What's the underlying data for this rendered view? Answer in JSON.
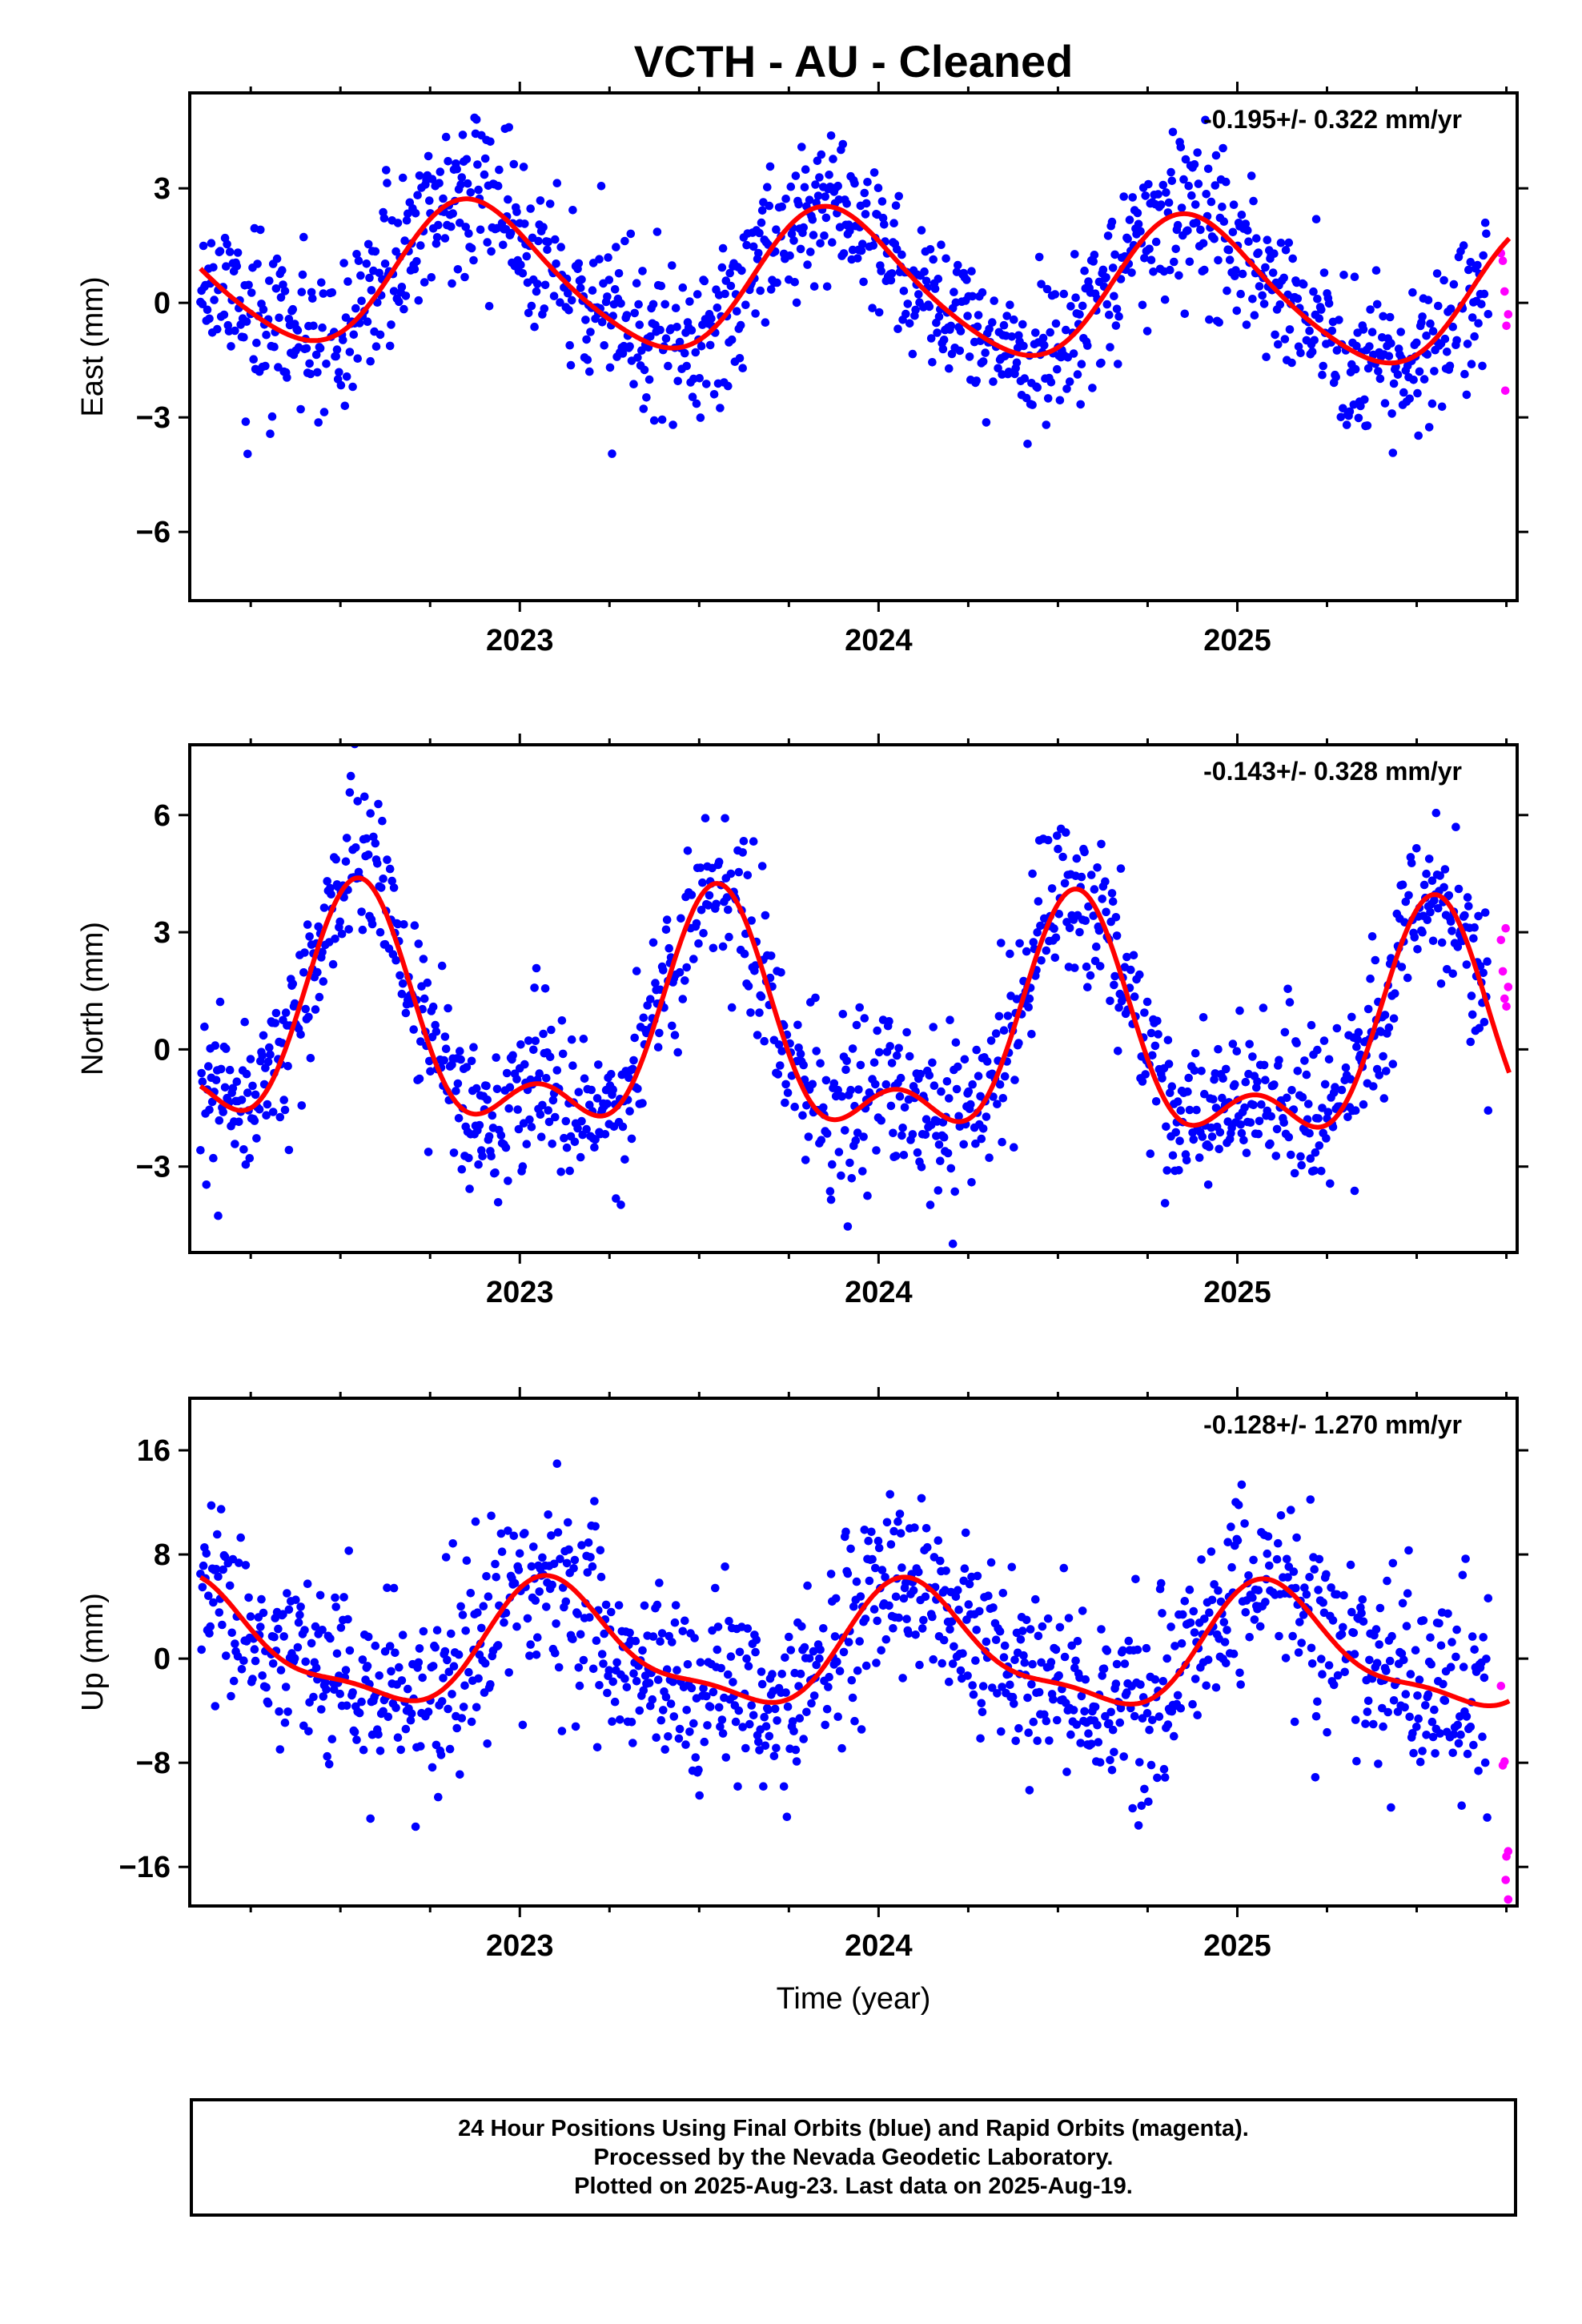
{
  "title": "VCTH  - AU - Cleaned",
  "colors": {
    "final": "#0000ff",
    "rapid": "#ff00ff",
    "fit": "#ff0000",
    "frame": "#000000"
  },
  "footer": {
    "line1": "24 Hour Positions Using Final Orbits (blue) and Rapid Orbits (magenta).",
    "line2": "Processed by the Nevada Geodetic Laboratory.",
    "line3": "Plotted on 2025-Aug-23. Last data on 2025-Aug-19."
  },
  "chart_data": [
    {
      "type": "scatter",
      "ylabel": "East (mm)",
      "rate": "-0.195+/- 0.322 mm/yr",
      "xlim": [
        2022.08,
        2025.78
      ],
      "ylim": [
        -7.8,
        5.5
      ],
      "yticks": [
        -6,
        -3,
        0,
        3
      ],
      "xticks": [
        2023,
        2024,
        2025
      ],
      "fit": {
        "mean": 0.5,
        "trend": -0.195,
        "amp": 1.85,
        "phase_peak": 0.88,
        "amp2": 0.25,
        "phase2": 0.3
      },
      "noise_sd": 1.0,
      "seed": 11,
      "rapid_points": [
        [
          2025.735,
          1.3
        ],
        [
          2025.74,
          1.1
        ],
        [
          2025.745,
          0.3
        ],
        [
          2025.75,
          -0.6
        ],
        [
          2025.755,
          -0.3
        ],
        [
          2025.747,
          -2.3
        ]
      ]
    },
    {
      "type": "scatter",
      "ylabel": "North (mm)",
      "rate": "-0.143+/- 0.328 mm/yr",
      "xlim": [
        2022.08,
        2025.78
      ],
      "ylim": [
        -5.2,
        7.8
      ],
      "yticks": [
        -3,
        0,
        3,
        6
      ],
      "xticks": [
        2023,
        2024,
        2025
      ],
      "fit": {
        "mean": 0.2,
        "trend": -0.143,
        "amp": 2.6,
        "phase_peak": 0.55,
        "amp2": 1.4,
        "phase2": 0.05
      },
      "noise_sd": 1.05,
      "seed": 23,
      "rapid_points": [
        [
          2025.735,
          2.8
        ],
        [
          2025.74,
          2.0
        ],
        [
          2025.745,
          1.3
        ],
        [
          2025.75,
          1.1
        ],
        [
          2025.755,
          1.6
        ],
        [
          2025.748,
          3.1
        ]
      ]
    },
    {
      "type": "scatter",
      "ylabel": "Up (mm)",
      "rate": "-0.128+/- 1.270 mm/yr",
      "xlim": [
        2022.08,
        2025.78
      ],
      "ylim": [
        -19,
        20
      ],
      "yticks": [
        -16,
        -8,
        0,
        8,
        16
      ],
      "xticks": [
        2023,
        2024,
        2025
      ],
      "xlabel": "Time (year)",
      "fit": {
        "mean": 0.6,
        "trend": -0.128,
        "amp": 4.4,
        "phase_peak": 0.1,
        "amp2": 1.4,
        "phase2": 0.55
      },
      "noise_sd": 3.6,
      "seed": 37,
      "rapid_points": [
        [
          2025.735,
          -2.1
        ],
        [
          2025.74,
          -8.2
        ],
        [
          2025.745,
          -7.9
        ],
        [
          2025.75,
          -15.2
        ],
        [
          2025.755,
          -14.8
        ],
        [
          2025.748,
          -17.0
        ],
        [
          2025.755,
          -18.5
        ]
      ]
    }
  ]
}
